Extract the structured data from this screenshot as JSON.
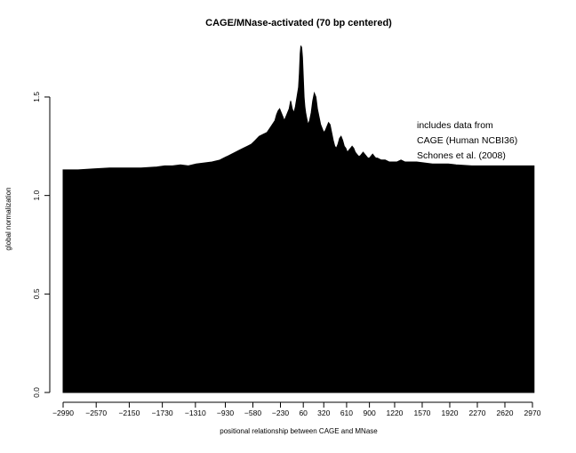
{
  "chart_data": {
    "type": "area",
    "title": "CAGE/MNase-activated (70 bp centered)",
    "xlabel": "positional relationship between CAGE and MNase",
    "ylabel": "global normalization",
    "xlim": [
      -3000,
      3000
    ],
    "ylim": [
      0,
      1.78
    ],
    "x_ticks": [
      -2990,
      -2570,
      -2150,
      -1730,
      -1310,
      -930,
      -580,
      -230,
      60,
      320,
      610,
      900,
      1220,
      1570,
      1920,
      2270,
      2620,
      2970
    ],
    "x_tick_labels": [
      "-2990",
      "-2570",
      "-2150",
      "-1730",
      "-1310",
      "-930",
      "-580",
      "-230",
      "60",
      "320",
      "610",
      "900",
      "1220",
      "1570",
      "1920",
      "2270",
      "2620",
      "2970"
    ],
    "y_ticks": [
      0.0,
      0.5,
      1.0,
      1.5
    ],
    "y_tick_labels": [
      "0.0",
      "0.5",
      "1.0",
      "1.5"
    ],
    "annotations": [
      "includes data from",
      "CAGE (Human NCBI36)",
      "Schones et al. (2008)"
    ],
    "fill_color": "#000000",
    "grid": false,
    "series": [
      {
        "x": [
          -2990,
          -2800,
          -2600,
          -2400,
          -2200,
          -2000,
          -1800,
          -1700,
          -1600,
          -1500,
          -1400,
          -1300,
          -1200,
          -1100,
          -1000,
          -950,
          -900,
          -850,
          -800,
          -750,
          -700,
          -650,
          -600,
          -550,
          -500,
          -450,
          -400,
          -350,
          -300,
          -280,
          -260,
          -240,
          -220,
          -200,
          -180,
          -160,
          -140,
          -120,
          -100,
          -80,
          -60,
          -40,
          -20,
          0,
          10,
          20,
          30,
          40,
          50,
          60,
          70,
          80,
          90,
          100,
          110,
          120,
          140,
          160,
          180,
          200,
          220,
          240,
          260,
          280,
          300,
          320,
          340,
          360,
          380,
          400,
          420,
          440,
          460,
          480,
          500,
          520,
          540,
          560,
          580,
          600,
          620,
          640,
          660,
          680,
          700,
          720,
          740,
          760,
          780,
          800,
          820,
          840,
          860,
          880,
          900,
          920,
          940,
          960,
          980,
          1000,
          1050,
          1100,
          1150,
          1200,
          1250,
          1300,
          1350,
          1400,
          1500,
          1600,
          1700,
          1800,
          1900,
          2000,
          2200,
          2400,
          2600,
          2800,
          2990
        ],
        "values": [
          1.13,
          1.13,
          1.135,
          1.14,
          1.14,
          1.14,
          1.145,
          1.15,
          1.15,
          1.155,
          1.15,
          1.16,
          1.165,
          1.17,
          1.18,
          1.19,
          1.2,
          1.21,
          1.22,
          1.23,
          1.24,
          1.25,
          1.26,
          1.28,
          1.3,
          1.31,
          1.32,
          1.35,
          1.38,
          1.41,
          1.43,
          1.44,
          1.42,
          1.4,
          1.38,
          1.4,
          1.42,
          1.44,
          1.48,
          1.44,
          1.42,
          1.45,
          1.5,
          1.55,
          1.62,
          1.72,
          1.76,
          1.75,
          1.7,
          1.6,
          1.5,
          1.45,
          1.42,
          1.4,
          1.38,
          1.36,
          1.38,
          1.42,
          1.48,
          1.52,
          1.5,
          1.44,
          1.4,
          1.36,
          1.34,
          1.32,
          1.33,
          1.35,
          1.37,
          1.36,
          1.32,
          1.28,
          1.25,
          1.24,
          1.26,
          1.29,
          1.3,
          1.28,
          1.25,
          1.24,
          1.22,
          1.23,
          1.24,
          1.25,
          1.24,
          1.22,
          1.21,
          1.2,
          1.2,
          1.21,
          1.22,
          1.21,
          1.2,
          1.19,
          1.19,
          1.2,
          1.21,
          1.2,
          1.19,
          1.19,
          1.18,
          1.18,
          1.17,
          1.17,
          1.17,
          1.18,
          1.17,
          1.17,
          1.17,
          1.165,
          1.16,
          1.16,
          1.16,
          1.155,
          1.15,
          1.15,
          1.15,
          1.15,
          1.15
        ]
      }
    ]
  }
}
